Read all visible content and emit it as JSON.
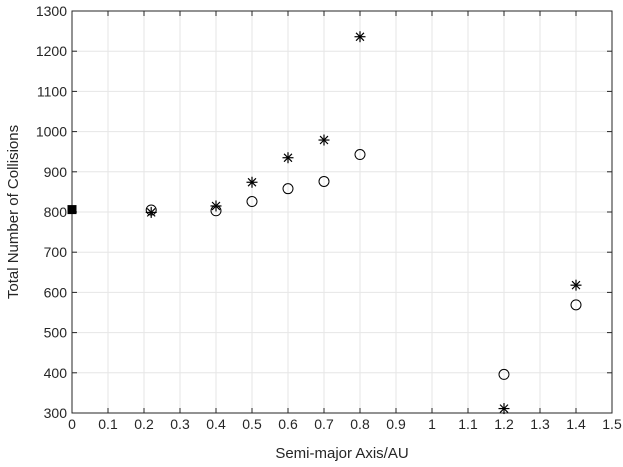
{
  "chart_data": {
    "type": "scatter",
    "xlabel": "Semi-major Axis/AU",
    "ylabel": "Total Number of Collisions",
    "xlim": [
      0,
      1.5
    ],
    "ylim": [
      300,
      1300
    ],
    "grid": true,
    "xticks": [
      "0",
      "0.1",
      "0.2",
      "0.3",
      "0.4",
      "0.5",
      "0.6",
      "0.7",
      "0.8",
      "0.9",
      "1",
      "1.1",
      "1.2",
      "1.3",
      "1.4",
      "1.5"
    ],
    "yticks": [
      "300",
      "400",
      "500",
      "600",
      "700",
      "800",
      "900",
      "1000",
      "1100",
      "1200",
      "1300"
    ],
    "series": [
      {
        "marker": "circle",
        "x": [
          0.22,
          0.4,
          0.5,
          0.6,
          0.7,
          0.8,
          1.2,
          1.4
        ],
        "y": [
          805,
          803,
          826,
          858,
          876,
          943,
          396,
          569
        ]
      },
      {
        "marker": "asterisk",
        "x": [
          0.22,
          0.4,
          0.5,
          0.6,
          0.7,
          0.8,
          1.2,
          1.4
        ],
        "y": [
          799,
          815,
          874,
          935,
          979,
          1236,
          311,
          618
        ]
      },
      {
        "marker": "filled-square",
        "x": [
          0
        ],
        "y": [
          806
        ]
      }
    ]
  }
}
